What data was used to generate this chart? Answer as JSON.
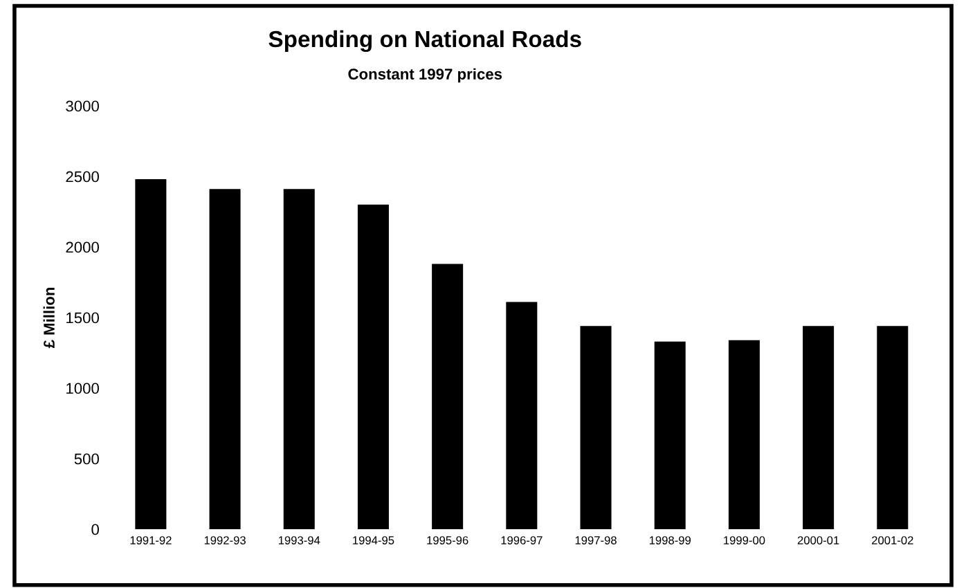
{
  "chart_data": {
    "type": "bar",
    "title": "Spending on National Roads",
    "subtitle": "Constant 1997 prices",
    "ylabel": "£ Million",
    "categories": [
      "1991-92",
      "1992-93",
      "1993-94",
      "1994-95",
      "1995-96",
      "1996-97",
      "1997-98",
      "1998-99",
      "1999-00",
      "2000-01",
      "2001-02"
    ],
    "values": [
      2480,
      2410,
      2410,
      2300,
      1880,
      1610,
      1440,
      1330,
      1340,
      1440,
      1440
    ],
    "color": "#000000",
    "ylim": [
      0,
      3000
    ],
    "yticks": [
      0,
      500,
      1000,
      1500,
      2000,
      2500,
      3000
    ],
    "grid": false
  }
}
